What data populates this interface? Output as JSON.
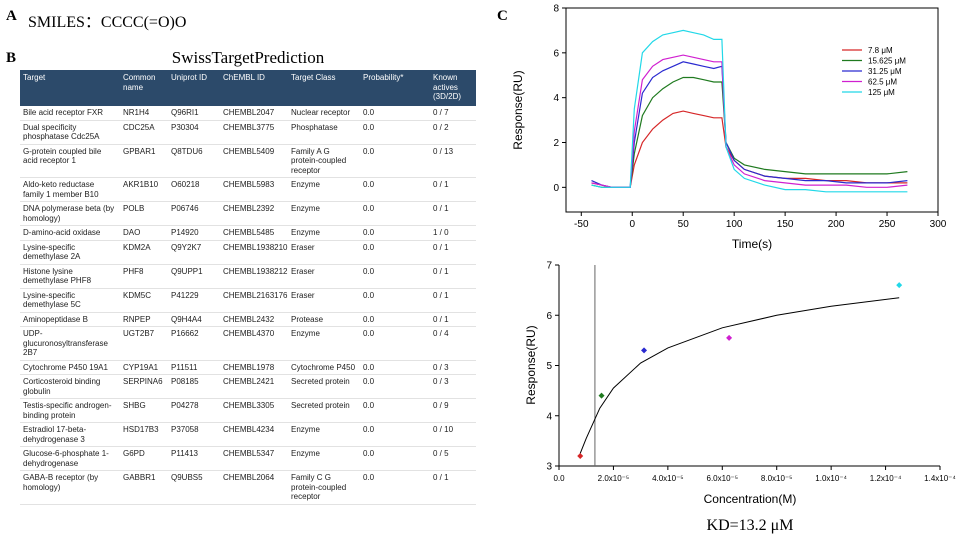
{
  "panel_labels": [
    "A",
    "B",
    "C"
  ],
  "smiles": "SMILES：CCCC(=O)O",
  "table": {
    "title": "SwissTargetPrediction",
    "columns": [
      "Target",
      "Common name",
      "Uniprot ID",
      "ChEMBL ID",
      "Target Class",
      "Probability*",
      "Known actives (3D/2D)"
    ],
    "rows": [
      [
        "Bile acid receptor FXR",
        "NR1H4",
        "Q96RI1",
        "CHEMBL2047",
        "Nuclear receptor",
        "0.0",
        "0 / 7"
      ],
      [
        "Dual specificity phosphatase Cdc25A",
        "CDC25A",
        "P30304",
        "CHEMBL3775",
        "Phosphatase",
        "0.0",
        "0 / 2"
      ],
      [
        "G-protein coupled bile acid receptor 1",
        "GPBAR1",
        "Q8TDU6",
        "CHEMBL5409",
        "Family A G protein-coupled receptor",
        "0.0",
        "0 / 13"
      ],
      [
        "Aldo-keto reductase family 1 member B10",
        "AKR1B10",
        "O60218",
        "CHEMBL5983",
        "Enzyme",
        "0.0",
        "0 / 1"
      ],
      [
        "DNA polymerase beta (by homology)",
        "POLB",
        "P06746",
        "CHEMBL2392",
        "Enzyme",
        "0.0",
        "0 / 1"
      ],
      [
        "D-amino-acid oxidase",
        "DAO",
        "P14920",
        "CHEMBL5485",
        "Enzyme",
        "0.0",
        "1 / 0"
      ],
      [
        "Lysine-specific demethylase 2A",
        "KDM2A",
        "Q9Y2K7",
        "CHEMBL1938210",
        "Eraser",
        "0.0",
        "0 / 1"
      ],
      [
        "Histone lysine demethylase PHF8",
        "PHF8",
        "Q9UPP1",
        "CHEMBL1938212",
        "Eraser",
        "0.0",
        "0 / 1"
      ],
      [
        "Lysine-specific demethylase 5C",
        "KDM5C",
        "P41229",
        "CHEMBL2163176",
        "Eraser",
        "0.0",
        "0 / 1"
      ],
      [
        "Aminopeptidase B",
        "RNPEP",
        "Q9H4A4",
        "CHEMBL2432",
        "Protease",
        "0.0",
        "0 / 1"
      ],
      [
        "UDP-glucuronosyltransferase 2B7",
        "UGT2B7",
        "P16662",
        "CHEMBL4370",
        "Enzyme",
        "0.0",
        "0 / 4"
      ],
      [
        "Cytochrome P450 19A1",
        "CYP19A1",
        "P11511",
        "CHEMBL1978",
        "Cytochrome P450",
        "0.0",
        "0 / 3"
      ],
      [
        "Corticosteroid binding globulin",
        "SERPINA6",
        "P08185",
        "CHEMBL2421",
        "Secreted protein",
        "0.0",
        "0 / 3"
      ],
      [
        "Testis-specific androgen-binding protein",
        "SHBG",
        "P04278",
        "CHEMBL3305",
        "Secreted protein",
        "0.0",
        "0 / 9"
      ],
      [
        "Estradiol 17-beta-dehydrogenase 3",
        "HSD17B3",
        "P37058",
        "CHEMBL4234",
        "Enzyme",
        "0.0",
        "0 / 10"
      ],
      [
        "Glucose-6-phosphate 1-dehydrogenase",
        "G6PD",
        "P11413",
        "CHEMBL5347",
        "Enzyme",
        "0.0",
        "0 / 5"
      ],
      [
        "GABA-B receptor (by homology)",
        "GABBR1",
        "Q9UBS5",
        "CHEMBL2064",
        "Family C G protein-coupled receptor",
        "0.0",
        "0 / 1"
      ]
    ]
  },
  "chart_data": [
    {
      "type": "line",
      "x_label": "Time(s)",
      "y_label": "Response(RU)",
      "x": [
        -40,
        -30,
        -20,
        -10,
        -2,
        2,
        10,
        20,
        30,
        40,
        50,
        60,
        70,
        80,
        88,
        92,
        100,
        110,
        130,
        150,
        170,
        190,
        210,
        230,
        250,
        270
      ],
      "xlim": [
        -65,
        300
      ],
      "xticks": [
        -50,
        0,
        50,
        100,
        150,
        200,
        250,
        300
      ],
      "ylim": [
        -1.1,
        8
      ],
      "yticks": [
        0,
        2,
        4,
        6,
        8
      ],
      "series": [
        {
          "name": "7.8 μM",
          "color": "#d62728",
          "values": [
            0.2,
            0.1,
            0.0,
            0.0,
            0.0,
            1.0,
            2.0,
            2.6,
            3.0,
            3.3,
            3.4,
            3.3,
            3.2,
            3.1,
            3.1,
            1.8,
            1.2,
            0.8,
            0.5,
            0.4,
            0.4,
            0.3,
            0.3,
            0.2,
            0.2,
            0.2
          ]
        },
        {
          "name": "15.625 μM",
          "color": "#1f7a1f",
          "values": [
            0.1,
            0.0,
            0.0,
            0.0,
            0.0,
            1.5,
            3.2,
            4.0,
            4.4,
            4.7,
            4.9,
            4.9,
            4.8,
            4.7,
            4.7,
            2.0,
            1.3,
            1.0,
            0.8,
            0.7,
            0.6,
            0.6,
            0.6,
            0.6,
            0.6,
            0.7
          ]
        },
        {
          "name": "31.25 μM",
          "color": "#2a2ad0",
          "values": [
            0.3,
            0.1,
            0.0,
            0.0,
            0.0,
            2.0,
            4.2,
            4.9,
            5.2,
            5.4,
            5.6,
            5.5,
            5.4,
            5.3,
            5.4,
            2.0,
            1.2,
            0.8,
            0.5,
            0.4,
            0.3,
            0.3,
            0.2,
            0.2,
            0.2,
            0.3
          ]
        },
        {
          "name": "62.5 μM",
          "color": "#d020d0",
          "values": [
            0.2,
            0.1,
            0.0,
            0.0,
            0.0,
            2.5,
            4.8,
            5.4,
            5.7,
            5.8,
            5.9,
            5.8,
            5.7,
            5.6,
            5.6,
            1.8,
            1.0,
            0.6,
            0.3,
            0.2,
            0.1,
            0.1,
            0.1,
            0.0,
            0.0,
            0.1
          ]
        },
        {
          "name": "125 μM",
          "color": "#22d8e8",
          "values": [
            0.1,
            0.0,
            0.0,
            0.0,
            0.0,
            3.5,
            6.0,
            6.5,
            6.8,
            6.9,
            7.0,
            6.9,
            6.8,
            6.6,
            6.6,
            1.8,
            0.8,
            0.4,
            0.1,
            -0.1,
            -0.1,
            -0.2,
            -0.2,
            -0.2,
            -0.2,
            -0.2
          ]
        }
      ]
    },
    {
      "type": "scatter",
      "x_label": "Concentration(M)",
      "y_label": "Response(RU)",
      "annotation": "KD=13.2 μM",
      "x": [
        7.8e-06,
        1.5625e-05,
        3.125e-05,
        6.25e-05,
        0.000125
      ],
      "values": [
        3.2,
        4.4,
        5.3,
        5.55,
        6.6
      ],
      "colors": [
        "#d62728",
        "#1f7a1f",
        "#2a2ad0",
        "#d020d0",
        "#22d8e8"
      ],
      "fit": {
        "color": "#000000",
        "x": [
          7.8e-06,
          1e-05,
          1.5e-05,
          2e-05,
          3e-05,
          4e-05,
          6e-05,
          8e-05,
          0.0001,
          0.000125
        ],
        "values": [
          3.25,
          3.55,
          4.15,
          4.55,
          5.05,
          5.35,
          5.75,
          6.0,
          6.18,
          6.35
        ]
      },
      "kd_line_x": 1.32e-05,
      "xlim": [
        0,
        0.00014
      ],
      "xticks": [
        {
          "value": 0,
          "label": "0.0"
        },
        {
          "value": 2e-05,
          "label": "2.0x10⁻⁵"
        },
        {
          "value": 4e-05,
          "label": "4.0x10⁻⁵"
        },
        {
          "value": 6e-05,
          "label": "6.0x10⁻⁵"
        },
        {
          "value": 8e-05,
          "label": "8.0x10⁻⁵"
        },
        {
          "value": 0.0001,
          "label": "1.0x10⁻⁴"
        },
        {
          "value": 0.00012,
          "label": "1.2x10⁻⁴"
        },
        {
          "value": 0.00014,
          "label": "1.4x10⁻⁴"
        }
      ],
      "ylim": [
        3,
        7
      ],
      "yticks": [
        3,
        4,
        5,
        6,
        7
      ]
    }
  ]
}
